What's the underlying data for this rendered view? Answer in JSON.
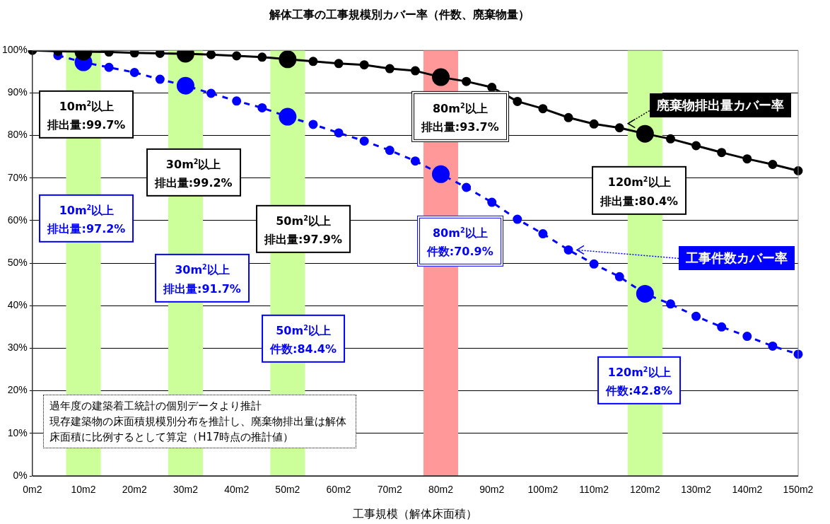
{
  "chart_data": {
    "type": "line",
    "title": "解体工事の工事規模別カバー率（件数、廃棄物量）",
    "xlabel": "工事規模（解体床面積）",
    "categories": [
      "0m2",
      null,
      "10m2",
      null,
      "20m2",
      null,
      "30m2",
      null,
      "40m2",
      null,
      "50m2",
      null,
      "60m2",
      null,
      "70m2",
      null,
      "80m2",
      null,
      "90m2",
      null,
      "100m2",
      null,
      "110m2",
      null,
      "120m2",
      null,
      "130m2",
      null,
      "140m2",
      null,
      "150m2"
    ],
    "series": [
      {
        "name": "廃棄物排出量カバー率",
        "color": "#000000",
        "line_style": "solid",
        "values": [
          100,
          99.8,
          99.7,
          99.6,
          99.4,
          99.3,
          99.2,
          99.0,
          98.7,
          98.4,
          97.9,
          97.4,
          96.9,
          96.6,
          95.7,
          95.2,
          93.7,
          92.7,
          91.3,
          88.0,
          86.3,
          84.2,
          82.7,
          81.8,
          80.4,
          79.2,
          77.6,
          76.0,
          74.5,
          73.2,
          71.7
        ]
      },
      {
        "name": "工事件数カバー率",
        "color": "#0000ff",
        "line_style": "dashed",
        "values": [
          null,
          98.8,
          97.2,
          96.0,
          94.8,
          93.2,
          91.7,
          89.9,
          88.1,
          86.5,
          84.4,
          82.6,
          80.6,
          78.7,
          76.5,
          74.0,
          70.9,
          67.8,
          64.3,
          60.3,
          56.9,
          53.1,
          49.8,
          46.8,
          42.8,
          40.4,
          37.5,
          35.0,
          32.8,
          30.5,
          28.6
        ]
      }
    ],
    "ylim": [
      0,
      100
    ],
    "yticks": [
      {
        "value": 0,
        "label": "0%"
      },
      {
        "value": 10,
        "label": "10%"
      },
      {
        "value": 20,
        "label": "20%"
      },
      {
        "value": 30,
        "label": "30%"
      },
      {
        "value": 40,
        "label": "40%"
      },
      {
        "value": 50,
        "label": "50%"
      },
      {
        "value": 60,
        "label": "60%"
      },
      {
        "value": 70,
        "label": "70%"
      },
      {
        "value": 80,
        "label": "80%"
      },
      {
        "value": 90,
        "label": "90%"
      },
      {
        "value": 100,
        "label": "100%"
      }
    ],
    "bands": [
      {
        "axis": "x",
        "from": "10m2",
        "to": "10m2",
        "color": "#ccff99"
      },
      {
        "axis": "x",
        "from": "30m2",
        "to": "30m2",
        "color": "#ccff99"
      },
      {
        "axis": "x",
        "from": "50m2",
        "to": "50m2",
        "color": "#ccff99"
      },
      {
        "axis": "x",
        "from": "80m2",
        "to": "80m2",
        "color": "#ff9999"
      },
      {
        "axis": "x",
        "from": "120m2",
        "to": "120m2",
        "color": "#ccff99"
      }
    ],
    "annotations": [
      "10m$^{2}$以上",
      "排出量:99.7%",
      "30m$^{2}$以上",
      "排出量:99.2%",
      "50m$^{2}$以上",
      "排出量:97.9%",
      "80m$^{2}$以上",
      "排出量:93.7%",
      "120m$^{2}$以上",
      "排出量:80.4%",
      "10m$^{2}$以上",
      "排出量:97.2%",
      "30m$^{2}$以上",
      "排出量:91.7%",
      "50m$^{2}$以上",
      "件数:84.4%",
      "80m$^{2}$以上",
      "件数:70.9%",
      "120m$^{2}$以上",
      "件数:42.8%",
      "過年度の建築着工統計の個別データより推計",
      "現存建築物の床面積規模別分布を推計し、廃棄物排出量は解体床面積に比例するとして算定（H17時点の推計値）"
    ],
    "grid": "y",
    "legend": false,
    "marker": "circle"
  }
}
